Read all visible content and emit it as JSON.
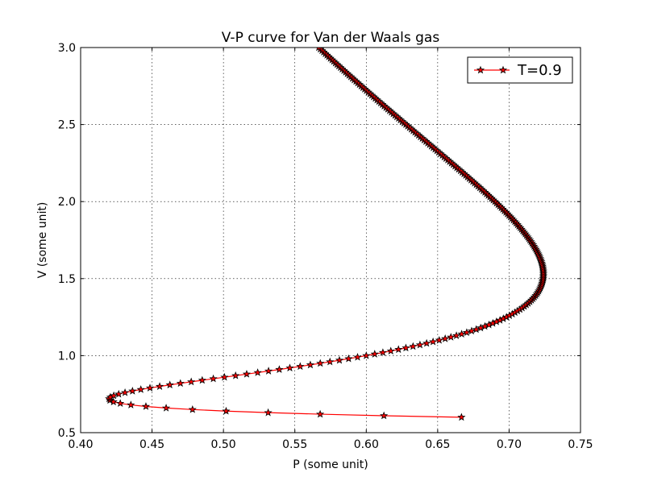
{
  "chart_data": {
    "type": "line",
    "title": "V-P curve for Van der Waals gas",
    "xlabel": "P (some unit)",
    "ylabel": "V (some unit)",
    "xlim": [
      0.4,
      0.75
    ],
    "ylim": [
      0.5,
      3.0
    ],
    "xticks": [
      0.4,
      0.45,
      0.5,
      0.55,
      0.6,
      0.65,
      0.7,
      0.75
    ],
    "xtick_labels": [
      "0.40",
      "0.45",
      "0.50",
      "0.55",
      "0.60",
      "0.65",
      "0.70",
      "0.75"
    ],
    "yticks": [
      0.5,
      1.0,
      1.5,
      2.0,
      2.5,
      3.0
    ],
    "ytick_labels": [
      "0.5",
      "1.0",
      "1.5",
      "2.0",
      "2.5",
      "3.0"
    ],
    "grid": true,
    "legend": {
      "position": "top-right"
    },
    "series": [
      {
        "name": "T=0.9",
        "color": "#ff0000",
        "marker": "star",
        "marker_edge_color": "#000000",
        "temperature": 0.9,
        "v_range": [
          0.6,
          3.0
        ],
        "v_step": 0.01
      }
    ]
  }
}
